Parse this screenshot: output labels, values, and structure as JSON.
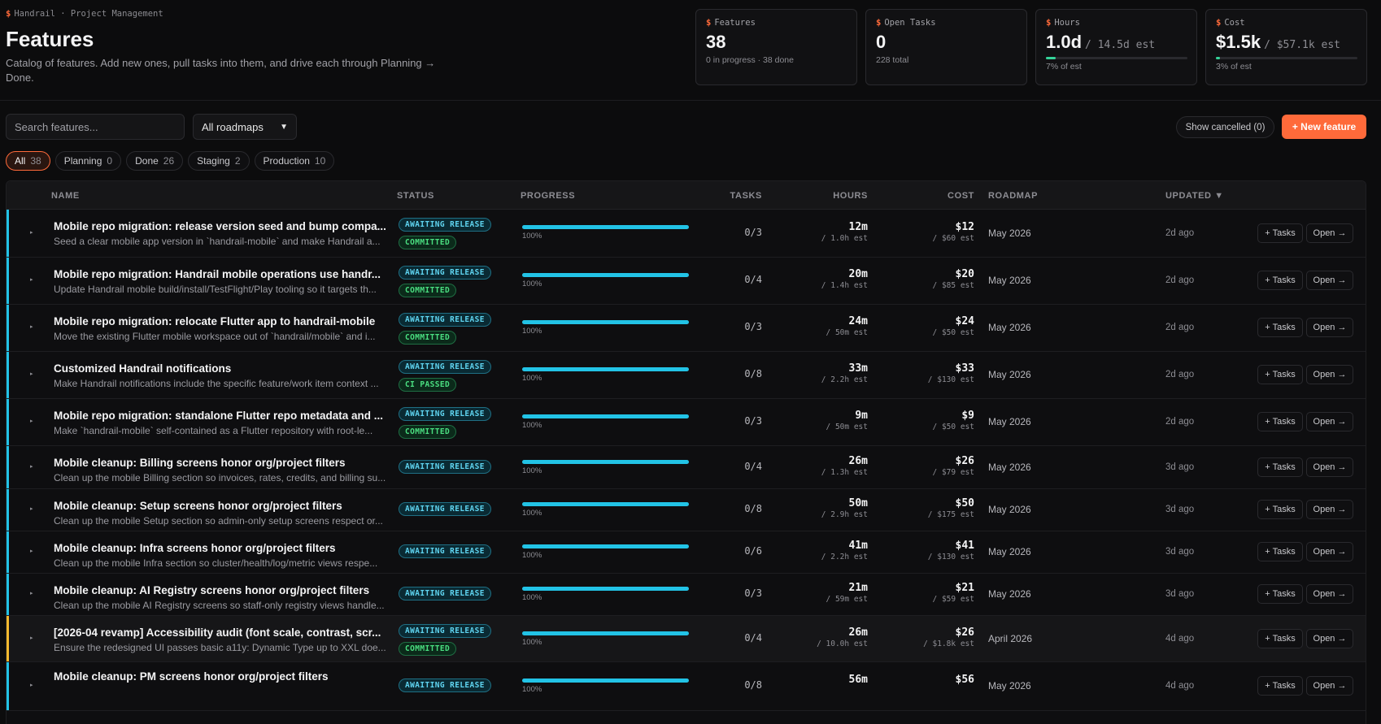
{
  "breadcrumb": {
    "app": "Handrail",
    "separator": "·",
    "section": "Project Management"
  },
  "page": {
    "title": "Features",
    "description": "Catalog of features. Add new ones, pull tasks into them, and drive each through Planning → Done."
  },
  "stats": {
    "features": {
      "label": "Features",
      "value": "38",
      "sub": "0 in progress · 38 done"
    },
    "open_tasks": {
      "label": "Open Tasks",
      "value": "0",
      "sub": "228 total"
    },
    "hours": {
      "label": "Hours",
      "value": "1.0d",
      "est": "/ 14.5d est",
      "sub": "7% of est",
      "progress": 0.07
    },
    "cost": {
      "label": "Cost",
      "value": "$1.5k",
      "est": "/ $57.1k est",
      "sub": "3% of est",
      "progress": 0.03
    }
  },
  "toolbar": {
    "search_placeholder": "Search features...",
    "roadmap_filter": "All roadmaps",
    "show_cancelled": "Show cancelled (0)",
    "new_feature": "+ New feature"
  },
  "filters": [
    {
      "label": "All",
      "count": "38",
      "active": true
    },
    {
      "label": "Planning",
      "count": "0",
      "active": false
    },
    {
      "label": "Done",
      "count": "26",
      "active": false
    },
    {
      "label": "Staging",
      "count": "2",
      "active": false
    },
    {
      "label": "Production",
      "count": "10",
      "active": false
    }
  ],
  "columns": {
    "name": "NAME",
    "status": "STATUS",
    "progress": "PROGRESS",
    "tasks": "TASKS",
    "hours": "HOURS",
    "cost": "COST",
    "roadmap": "ROADMAP",
    "updated": "UPDATED ▼"
  },
  "row_actions": {
    "tasks": "+ Tasks",
    "open": "Open →"
  },
  "colors": {
    "accent": "#ff6a3a",
    "progress": "#22c3e6",
    "success": "#4ade80",
    "amber": "#f5b92e"
  },
  "rows": [
    {
      "title": "Mobile repo migration: release version seed and bump compa...",
      "desc": "Seed a clear mobile app version in `handrail-mobile` and make Handrail a...",
      "badges": [
        "AWAITING RELEASE",
        "COMMITTED"
      ],
      "progress": 1.0,
      "progress_label": "100%",
      "tasks": "0/3",
      "hours": "12m",
      "hours_est": "/ 1.0h est",
      "cost": "$12",
      "cost_est": "/ $60 est",
      "roadmap": "May 2026",
      "updated": "2d ago",
      "accent": "cyan",
      "highlight": false
    },
    {
      "title": "Mobile repo migration: Handrail mobile operations use handr...",
      "desc": "Update Handrail mobile build/install/TestFlight/Play tooling so it targets th...",
      "badges": [
        "AWAITING RELEASE",
        "COMMITTED"
      ],
      "progress": 1.0,
      "progress_label": "100%",
      "tasks": "0/4",
      "hours": "20m",
      "hours_est": "/ 1.4h est",
      "cost": "$20",
      "cost_est": "/ $85 est",
      "roadmap": "May 2026",
      "updated": "2d ago",
      "accent": "cyan",
      "highlight": false
    },
    {
      "title": "Mobile repo migration: relocate Flutter app to handrail-mobile",
      "desc": "Move the existing Flutter mobile workspace out of `handrail/mobile` and i...",
      "badges": [
        "AWAITING RELEASE",
        "COMMITTED"
      ],
      "progress": 1.0,
      "progress_label": "100%",
      "tasks": "0/3",
      "hours": "24m",
      "hours_est": "/ 50m est",
      "cost": "$24",
      "cost_est": "/ $50 est",
      "roadmap": "May 2026",
      "updated": "2d ago",
      "accent": "cyan",
      "highlight": false
    },
    {
      "title": "Customized Handrail notifications",
      "desc": "Make Handrail notifications include the specific feature/work item context ...",
      "badges": [
        "AWAITING RELEASE",
        "CI PASSED"
      ],
      "progress": 1.0,
      "progress_label": "100%",
      "tasks": "0/8",
      "hours": "33m",
      "hours_est": "/ 2.2h est",
      "cost": "$33",
      "cost_est": "/ $130 est",
      "roadmap": "May 2026",
      "updated": "2d ago",
      "accent": "cyan",
      "highlight": false
    },
    {
      "title": "Mobile repo migration: standalone Flutter repo metadata and ...",
      "desc": "Make `handrail-mobile` self-contained as a Flutter repository with root-le...",
      "badges": [
        "AWAITING RELEASE",
        "COMMITTED"
      ],
      "progress": 1.0,
      "progress_label": "100%",
      "tasks": "0/3",
      "hours": "9m",
      "hours_est": "/ 50m est",
      "cost": "$9",
      "cost_est": "/ $50 est",
      "roadmap": "May 2026",
      "updated": "2d ago",
      "accent": "cyan",
      "highlight": false
    },
    {
      "title": "Mobile cleanup: Billing screens honor org/project filters",
      "desc": "Clean up the mobile Billing section so invoices, rates, credits, and billing su...",
      "badges": [
        "AWAITING RELEASE"
      ],
      "progress": 1.0,
      "progress_label": "100%",
      "tasks": "0/4",
      "hours": "26m",
      "hours_est": "/ 1.3h est",
      "cost": "$26",
      "cost_est": "/ $79 est",
      "roadmap": "May 2026",
      "updated": "3d ago",
      "accent": "cyan",
      "highlight": false
    },
    {
      "title": "Mobile cleanup: Setup screens honor org/project filters",
      "desc": "Clean up the mobile Setup section so admin-only setup screens respect or...",
      "badges": [
        "AWAITING RELEASE"
      ],
      "progress": 1.0,
      "progress_label": "100%",
      "tasks": "0/8",
      "hours": "50m",
      "hours_est": "/ 2.9h est",
      "cost": "$50",
      "cost_est": "/ $175 est",
      "roadmap": "May 2026",
      "updated": "3d ago",
      "accent": "cyan",
      "highlight": false
    },
    {
      "title": "Mobile cleanup: Infra screens honor org/project filters",
      "desc": "Clean up the mobile Infra section so cluster/health/log/metric views respe...",
      "badges": [
        "AWAITING RELEASE"
      ],
      "progress": 1.0,
      "progress_label": "100%",
      "tasks": "0/6",
      "hours": "41m",
      "hours_est": "/ 2.2h est",
      "cost": "$41",
      "cost_est": "/ $130 est",
      "roadmap": "May 2026",
      "updated": "3d ago",
      "accent": "cyan",
      "highlight": false
    },
    {
      "title": "Mobile cleanup: AI Registry screens honor org/project filters",
      "desc": "Clean up the mobile AI Registry screens so staff-only registry views handle...",
      "badges": [
        "AWAITING RELEASE"
      ],
      "progress": 1.0,
      "progress_label": "100%",
      "tasks": "0/3",
      "hours": "21m",
      "hours_est": "/ 59m est",
      "cost": "$21",
      "cost_est": "/ $59 est",
      "roadmap": "May 2026",
      "updated": "3d ago",
      "accent": "cyan",
      "highlight": false
    },
    {
      "title": "[2026-04 revamp] Accessibility audit (font scale, contrast, scr...",
      "desc": "Ensure the redesigned UI passes basic a11y: Dynamic Type up to XXL doe...",
      "badges": [
        "AWAITING RELEASE",
        "COMMITTED"
      ],
      "progress": 1.0,
      "progress_label": "100%",
      "tasks": "0/4",
      "hours": "26m",
      "hours_est": "/ 10.0h est",
      "cost": "$26",
      "cost_est": "/ $1.8k est",
      "roadmap": "April 2026",
      "updated": "4d ago",
      "accent": "amber",
      "highlight": true
    },
    {
      "title": "Mobile cleanup: PM screens honor org/project filters",
      "desc": "",
      "badges": [
        "AWAITING RELEASE"
      ],
      "progress": 1.0,
      "progress_label": "100%",
      "tasks": "0/8",
      "hours": "56m",
      "hours_est": "",
      "cost": "$56",
      "cost_est": "",
      "roadmap": "May 2026",
      "updated": "4d ago",
      "accent": "cyan",
      "highlight": false
    }
  ]
}
